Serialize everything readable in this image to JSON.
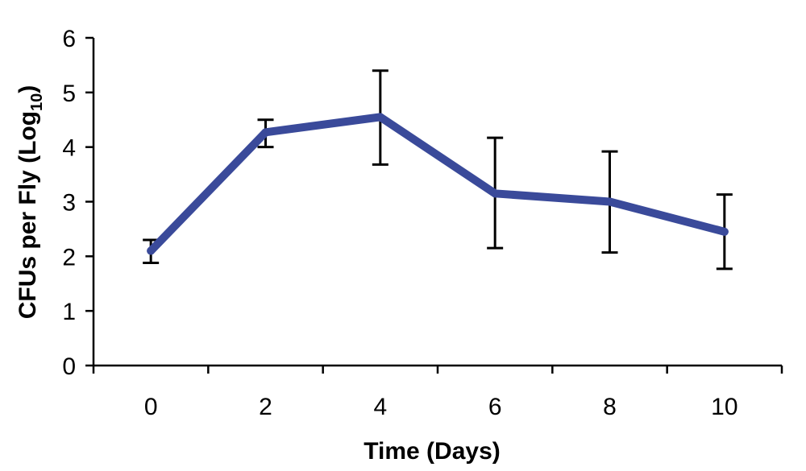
{
  "chart_data": {
    "type": "line",
    "title": "",
    "xlabel": "Time (Days)",
    "ylabel": "CFUs per Fly (Log10)",
    "ylabel_parts": {
      "main": "CFUs per Fly (Log",
      "subscript": "10",
      "close": ")"
    },
    "x": [
      0,
      2,
      4,
      6,
      8,
      10
    ],
    "x_tick_labels": [
      "0",
      "2",
      "4",
      "6",
      "8",
      "10"
    ],
    "y_tick_labels": [
      "0",
      "1",
      "2",
      "3",
      "4",
      "5",
      "6"
    ],
    "ylim": [
      0,
      6
    ],
    "grid": false,
    "legend": "none",
    "series": [
      {
        "values": [
          2.1,
          4.27,
          4.55,
          3.15,
          3.0,
          2.45
        ],
        "error_low": [
          1.88,
          4.0,
          3.68,
          2.15,
          2.07,
          1.77
        ],
        "error_high": [
          2.3,
          4.5,
          5.4,
          4.17,
          3.92,
          3.13
        ],
        "color": "#3a4a9a"
      }
    ]
  }
}
